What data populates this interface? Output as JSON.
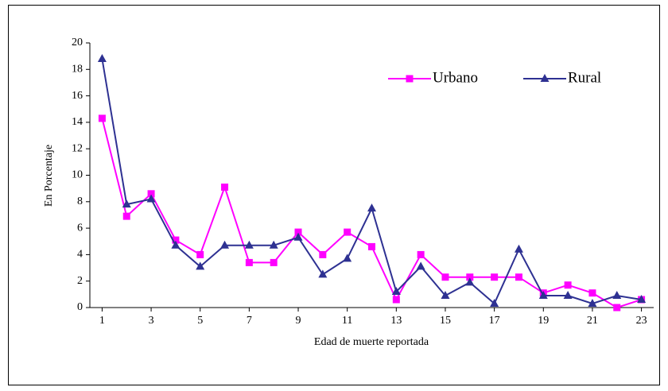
{
  "chart_data": {
    "type": "line",
    "x": [
      1,
      2,
      3,
      4,
      5,
      6,
      7,
      8,
      9,
      10,
      11,
      12,
      13,
      14,
      15,
      16,
      17,
      18,
      19,
      20,
      21,
      22,
      23
    ],
    "xlim": [
      0.5,
      23.5
    ],
    "xticks": [
      1,
      3,
      5,
      7,
      9,
      11,
      13,
      15,
      17,
      19,
      21,
      23
    ],
    "ylim": [
      0,
      20
    ],
    "yticks": [
      0,
      2,
      4,
      6,
      8,
      10,
      12,
      14,
      16,
      18,
      20
    ],
    "xlabel": "Edad de muerte reportada",
    "ylabel": "En Porcentaje",
    "legend": "upper right",
    "series": [
      {
        "name": "Urbano",
        "color": "#ff00ff",
        "marker": "square",
        "values": [
          14.3,
          6.9,
          8.6,
          5.1,
          4.0,
          9.1,
          3.4,
          3.4,
          5.7,
          4.0,
          5.7,
          4.6,
          0.6,
          4.0,
          2.3,
          2.3,
          2.3,
          2.3,
          1.1,
          1.7,
          1.1,
          0,
          0.6
        ]
      },
      {
        "name": "Rural",
        "color": "#2e3192",
        "marker": "triangle",
        "values": [
          18.8,
          7.8,
          8.2,
          4.7,
          3.1,
          4.7,
          4.7,
          4.7,
          5.3,
          2.5,
          3.7,
          7.5,
          1.2,
          3.1,
          0.9,
          1.9,
          0.3,
          4.4,
          0.9,
          0.9,
          0.3,
          0.9,
          0.6
        ]
      }
    ]
  }
}
